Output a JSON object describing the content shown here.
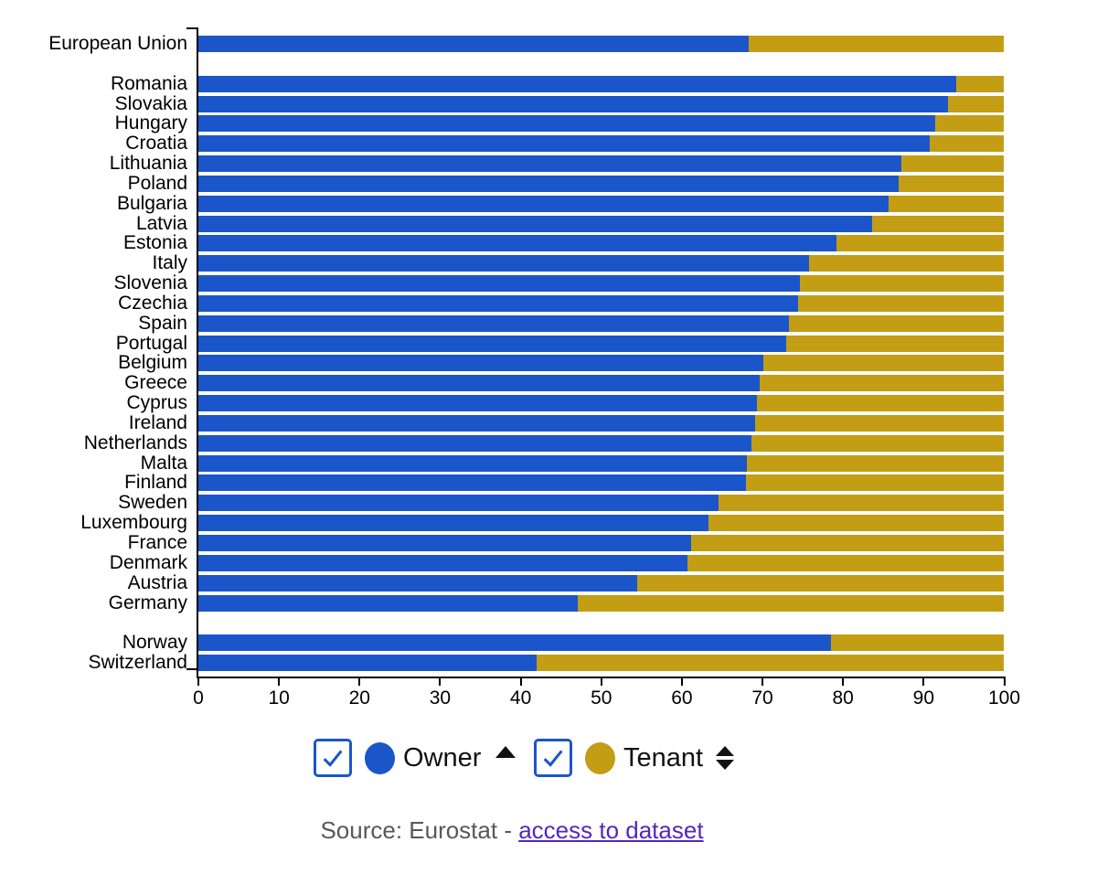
{
  "chart_data": {
    "type": "bar",
    "orientation": "horizontal",
    "stacked": true,
    "unit": "percent of population",
    "xlim": [
      0,
      100
    ],
    "x_ticks": [
      0,
      10,
      20,
      30,
      40,
      50,
      60,
      70,
      80,
      90,
      100
    ],
    "grid": false,
    "legend_position": "bottom",
    "series_names": [
      "Owner",
      "Tenant"
    ],
    "legend": [
      {
        "label": "Owner",
        "color": "#1A56C9",
        "checked": true,
        "sort_icon": "ascending"
      },
      {
        "label": "Tenant",
        "color": "#C39D14",
        "checked": true,
        "sort_icon": "both"
      }
    ],
    "groups": [
      {
        "name": "eu-aggregate",
        "rows": [
          {
            "label": "European Union",
            "owner": 68.3,
            "tenant": 31.7
          }
        ]
      },
      {
        "name": "eu-members",
        "rows": [
          {
            "label": "Romania",
            "owner": 94.1,
            "tenant": 5.9
          },
          {
            "label": "Slovakia",
            "owner": 93.0,
            "tenant": 7.0
          },
          {
            "label": "Hungary",
            "owner": 91.4,
            "tenant": 8.6
          },
          {
            "label": "Croatia",
            "owner": 90.7,
            "tenant": 9.3
          },
          {
            "label": "Lithuania",
            "owner": 87.2,
            "tenant": 12.8
          },
          {
            "label": "Poland",
            "owner": 86.9,
            "tenant": 13.1
          },
          {
            "label": "Bulgaria",
            "owner": 85.7,
            "tenant": 14.3
          },
          {
            "label": "Latvia",
            "owner": 83.6,
            "tenant": 16.4
          },
          {
            "label": "Estonia",
            "owner": 79.2,
            "tenant": 20.8
          },
          {
            "label": "Italy",
            "owner": 75.8,
            "tenant": 24.2
          },
          {
            "label": "Slovenia",
            "owner": 74.7,
            "tenant": 25.3
          },
          {
            "label": "Czechia",
            "owner": 74.4,
            "tenant": 25.6
          },
          {
            "label": "Spain",
            "owner": 73.3,
            "tenant": 26.7
          },
          {
            "label": "Portugal",
            "owner": 73.0,
            "tenant": 27.0
          },
          {
            "label": "Belgium",
            "owner": 70.1,
            "tenant": 29.9
          },
          {
            "label": "Greece",
            "owner": 69.6,
            "tenant": 30.4
          },
          {
            "label": "Cyprus",
            "owner": 69.3,
            "tenant": 30.7
          },
          {
            "label": "Ireland",
            "owner": 69.1,
            "tenant": 30.9
          },
          {
            "label": "Netherlands",
            "owner": 68.6,
            "tenant": 31.4
          },
          {
            "label": "Malta",
            "owner": 68.1,
            "tenant": 31.9
          },
          {
            "label": "Finland",
            "owner": 68.0,
            "tenant": 32.0
          },
          {
            "label": "Sweden",
            "owner": 64.6,
            "tenant": 35.4
          },
          {
            "label": "Luxembourg",
            "owner": 63.3,
            "tenant": 36.7
          },
          {
            "label": "France",
            "owner": 61.1,
            "tenant": 38.9
          },
          {
            "label": "Denmark",
            "owner": 60.7,
            "tenant": 39.3
          },
          {
            "label": "Austria",
            "owner": 54.5,
            "tenant": 45.5
          },
          {
            "label": "Germany",
            "owner": 47.1,
            "tenant": 52.9
          }
        ]
      },
      {
        "name": "non-eu",
        "rows": [
          {
            "label": "Norway",
            "owner": 78.5,
            "tenant": 21.5
          },
          {
            "label": "Switzerland",
            "owner": 42.0,
            "tenant": 58.0
          }
        ]
      }
    ]
  },
  "colors": {
    "owner": "#1A56C9",
    "tenant": "#C39D14",
    "axis": "#000000",
    "source_text": "#58585A",
    "link": "#5128BD",
    "checkbox_border": "#1A56C9"
  },
  "source": {
    "prefix": "Source: Eurostat - ",
    "link_text": "access to dataset"
  }
}
